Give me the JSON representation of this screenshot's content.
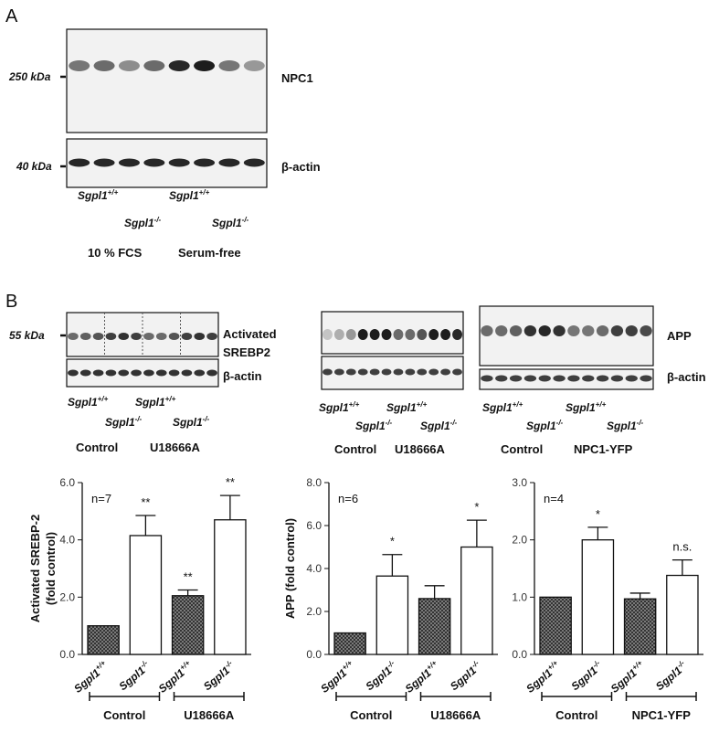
{
  "panel_a": {
    "label": "A",
    "blot_main": {
      "marker": "250 kDa",
      "protein": "NPC1"
    },
    "blot_loading": {
      "marker": "40 kDa",
      "protein": "β-actin"
    },
    "lanes": [
      "Sgpl1+/+",
      "Sgpl1-/-",
      "Sgpl1+/+",
      "Sgpl1-/-"
    ],
    "conditions": [
      "10 % FCS",
      "Serum-free"
    ]
  },
  "panel_b": {
    "label": "B",
    "blots": [
      {
        "marker": "55 kDa",
        "protein": [
          "Activated",
          "SREBP2"
        ],
        "loading": "β-actin",
        "lanes": [
          "Sgpl1+/+",
          "Sgpl1-/-",
          "Sgpl1+/+",
          "Sgpl1-/-"
        ],
        "groups": [
          "Control",
          "U18666A"
        ]
      },
      {
        "lanes": [
          "Sgpl1+/+",
          "Sgpl1-/-",
          "Sgpl1+/+",
          "Sgpl1-/-"
        ],
        "groups": [
          "Control",
          "U18666A"
        ]
      },
      {
        "protein": [
          "APP"
        ],
        "loading": "β-actin",
        "lanes": [
          "Sgpl1+/+",
          "Sgpl1-/-",
          "Sgpl1+/+",
          "Sgpl1-/-"
        ],
        "groups": [
          "Control",
          "NPC1-YFP"
        ]
      }
    ]
  },
  "chart_data": [
    {
      "type": "bar",
      "ylabel": [
        "Activated SREBP-2",
        "(fold control)"
      ],
      "annotation": "n=7",
      "categories": [
        "Sgpl1+/+",
        "Sgpl1-/-",
        "Sgpl1+/+",
        "Sgpl1-/-"
      ],
      "values": [
        1.0,
        4.15,
        2.05,
        4.7
      ],
      "errors": [
        0,
        0.7,
        0.2,
        0.85
      ],
      "sig_labels": [
        null,
        "**",
        "**",
        "**"
      ],
      "colors": [
        "#8c8c8c",
        "#ffffff",
        "#8c8c8c",
        "#ffffff"
      ],
      "ylim": [
        0,
        6
      ],
      "yticks": [
        {
          "value": 0,
          "label": "0.0"
        },
        {
          "value": 2,
          "label": "2.0"
        },
        {
          "value": 4,
          "label": "4.0"
        },
        {
          "value": 6,
          "label": "6.0"
        }
      ],
      "groups": [
        "Control",
        "U18666A"
      ]
    },
    {
      "type": "bar",
      "ylabel": [
        "APP (fold control)"
      ],
      "annotation": "n=6",
      "categories": [
        "Sgpl1+/+",
        "Sgpl1-/-",
        "Sgpl1+/+",
        "Sgpl1-/-"
      ],
      "values": [
        1.0,
        3.65,
        2.6,
        5.0
      ],
      "errors": [
        0,
        1.0,
        0.6,
        1.25
      ],
      "sig_labels": [
        null,
        "*",
        null,
        "*"
      ],
      "colors": [
        "#8c8c8c",
        "#ffffff",
        "#8c8c8c",
        "#ffffff"
      ],
      "ylim": [
        0,
        8
      ],
      "yticks": [
        {
          "value": 0,
          "label": "0.0"
        },
        {
          "value": 2,
          "label": "2.0"
        },
        {
          "value": 4,
          "label": "4.0"
        },
        {
          "value": 6,
          "label": "6.0"
        },
        {
          "value": 8,
          "label": "8.0"
        }
      ],
      "groups": [
        "Control",
        "U18666A"
      ]
    },
    {
      "type": "bar",
      "annotation": "n=4",
      "categories": [
        "Sgpl1+/+",
        "Sgpl1-/-",
        "Sgpl1+/+",
        "Sgpl1-/-"
      ],
      "values": [
        1.0,
        2.0,
        0.97,
        1.38
      ],
      "errors": [
        0,
        0.22,
        0.1,
        0.27
      ],
      "sig_labels": [
        null,
        "*",
        null,
        "n.s."
      ],
      "colors": [
        "#8c8c8c",
        "#ffffff",
        "#8c8c8c",
        "#ffffff"
      ],
      "ylim": [
        0,
        3
      ],
      "yticks": [
        {
          "value": 0,
          "label": "0.0"
        },
        {
          "value": 1,
          "label": "1.0"
        },
        {
          "value": 2,
          "label": "2.0"
        },
        {
          "value": 3,
          "label": "3.0"
        }
      ],
      "groups": [
        "Control",
        "NPC1-YFP"
      ]
    }
  ]
}
